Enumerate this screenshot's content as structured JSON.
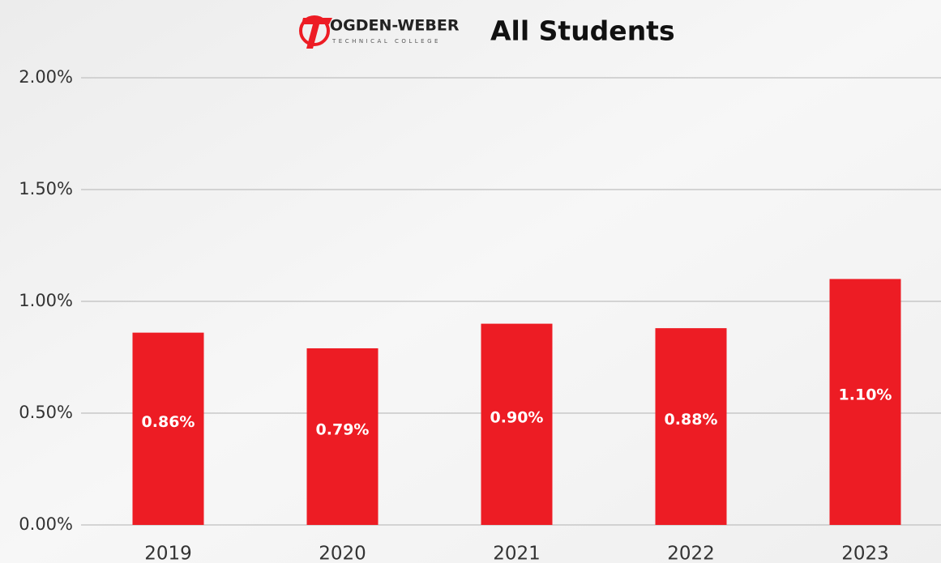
{
  "chart_data": {
    "type": "bar",
    "logo": {
      "name": "OGDEN-WEBER",
      "subtitle": "TECHNICAL COLLEGE"
    },
    "title": "All Students",
    "categories": [
      "2019",
      "2020",
      "2021",
      "2022",
      "2023"
    ],
    "values": [
      0.86,
      0.79,
      0.9,
      0.88,
      1.1
    ],
    "value_labels": [
      "0.86%",
      "0.79%",
      "0.90%",
      "0.88%",
      "1.10%"
    ],
    "color": "#ed1c24",
    "ylim": [
      0,
      2
    ],
    "yticks": [
      {
        "value": 0,
        "label": "0.00%"
      },
      {
        "value": 0.5,
        "label": "0.50%"
      },
      {
        "value": 1,
        "label": "1.00%"
      },
      {
        "value": 1.5,
        "label": "1.50%"
      },
      {
        "value": 2,
        "label": "2.00%"
      }
    ],
    "grid": true
  }
}
